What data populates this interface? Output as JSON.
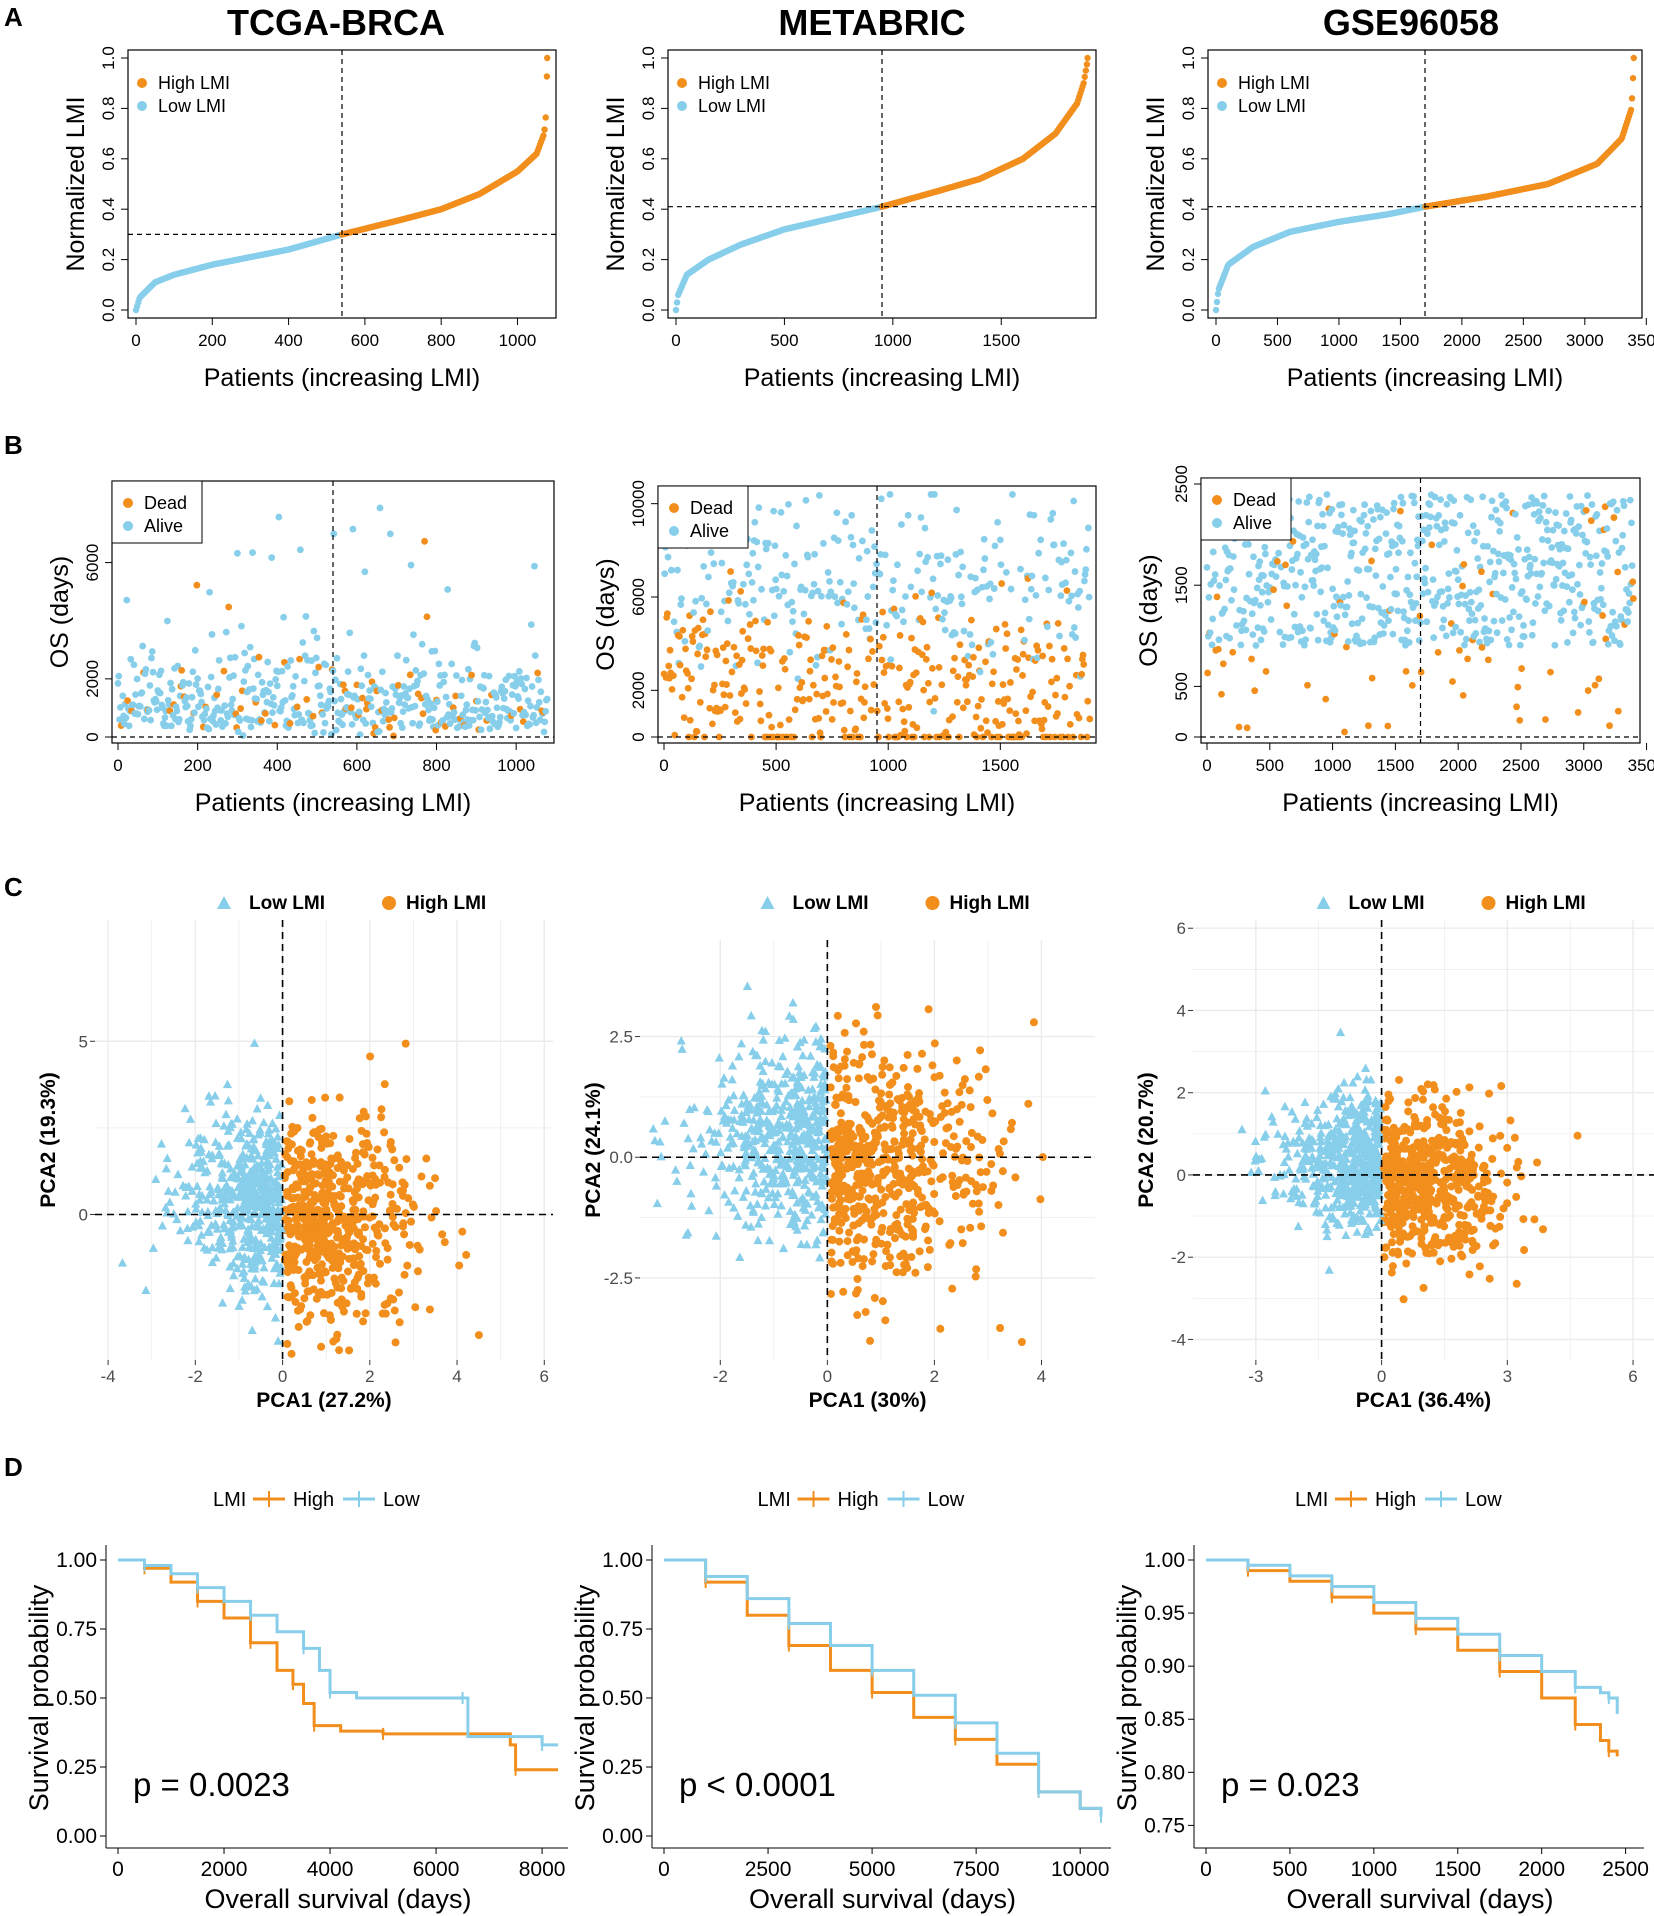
{
  "colors": {
    "high": "#F28E1C",
    "low": "#87CEEB",
    "black": "#000000",
    "grid": "#EBEBEB"
  },
  "panel_labels": [
    "A",
    "B",
    "C",
    "D"
  ],
  "column_titles": [
    "TCGA-BRCA",
    "METABRIC",
    "GSE96058"
  ],
  "chart_data": [
    {
      "id": "A1",
      "type": "scatter",
      "panel": "A",
      "title": "TCGA-BRCA",
      "xlabel": "Patients (increasing LMI)",
      "ylabel": "Normalized LMI",
      "xlim": [
        0,
        1080
      ],
      "ylim": [
        0,
        1.0
      ],
      "xticks": [
        0,
        200,
        400,
        600,
        800,
        1000
      ],
      "yticks": [
        0.0,
        0.2,
        0.4,
        0.6,
        0.8,
        1.0
      ],
      "ytick_labels": [
        "0.0",
        "0.2",
        "0.4",
        "0.6",
        "0.8",
        "1.0"
      ],
      "cutoff_x": 540,
      "cutoff_y": 0.3,
      "n": 1080,
      "curve": [
        [
          0,
          0.0
        ],
        [
          10,
          0.05
        ],
        [
          50,
          0.11
        ],
        [
          100,
          0.14
        ],
        [
          200,
          0.18
        ],
        [
          300,
          0.21
        ],
        [
          400,
          0.24
        ],
        [
          540,
          0.3
        ],
        [
          700,
          0.36
        ],
        [
          800,
          0.4
        ],
        [
          900,
          0.46
        ],
        [
          1000,
          0.55
        ],
        [
          1050,
          0.62
        ],
        [
          1070,
          0.7
        ],
        [
          1075,
          0.78
        ],
        [
          1078,
          1.0
        ]
      ],
      "legend": [
        "High LMI",
        "Low LMI"
      ]
    },
    {
      "id": "A2",
      "type": "scatter",
      "panel": "A",
      "title": "METABRIC",
      "xlabel": "Patients (increasing LMI)",
      "ylabel": "Normalized LMI",
      "xlim": [
        0,
        1900
      ],
      "ylim": [
        0,
        1.0
      ],
      "xticks": [
        0,
        500,
        1000,
        1500
      ],
      "yticks": [
        0.0,
        0.2,
        0.4,
        0.6,
        0.8,
        1.0
      ],
      "ytick_labels": [
        "0.0",
        "0.2",
        "0.4",
        "0.6",
        "0.8",
        "1.0"
      ],
      "cutoff_x": 950,
      "cutoff_y": 0.41,
      "n": 1900,
      "curve": [
        [
          0,
          0.0
        ],
        [
          10,
          0.06
        ],
        [
          50,
          0.14
        ],
        [
          150,
          0.2
        ],
        [
          300,
          0.26
        ],
        [
          500,
          0.32
        ],
        [
          700,
          0.36
        ],
        [
          950,
          0.41
        ],
        [
          1200,
          0.47
        ],
        [
          1400,
          0.52
        ],
        [
          1600,
          0.6
        ],
        [
          1750,
          0.7
        ],
        [
          1850,
          0.82
        ],
        [
          1880,
          0.9
        ],
        [
          1900,
          1.0
        ]
      ],
      "legend": [
        "High LMI",
        "Low LMI"
      ]
    },
    {
      "id": "A3",
      "type": "scatter",
      "panel": "A",
      "title": "GSE96058",
      "xlabel": "Patients (increasing LMI)",
      "ylabel": "Normalized LMI",
      "xlim": [
        0,
        3400
      ],
      "ylim": [
        0,
        1.0
      ],
      "xticks": [
        0,
        500,
        1000,
        1500,
        2000,
        2500,
        3000,
        3500
      ],
      "yticks": [
        0.0,
        0.2,
        0.4,
        0.6,
        0.8,
        1.0
      ],
      "ytick_labels": [
        "0.0",
        "0.2",
        "0.4",
        "0.6",
        "0.8",
        "1.0"
      ],
      "cutoff_x": 1700,
      "cutoff_y": 0.41,
      "n": 3400,
      "curve": [
        [
          0,
          0.0
        ],
        [
          20,
          0.08
        ],
        [
          100,
          0.18
        ],
        [
          300,
          0.25
        ],
        [
          600,
          0.31
        ],
        [
          1000,
          0.35
        ],
        [
          1400,
          0.38
        ],
        [
          1700,
          0.41
        ],
        [
          2200,
          0.45
        ],
        [
          2700,
          0.5
        ],
        [
          3100,
          0.58
        ],
        [
          3300,
          0.68
        ],
        [
          3380,
          0.8
        ],
        [
          3400,
          1.0
        ]
      ],
      "legend": [
        "High LMI",
        "Low LMI"
      ]
    },
    {
      "id": "B1",
      "type": "scatter",
      "panel": "B",
      "xlabel": "Patients (increasing LMI)",
      "ylabel": "OS (days)",
      "xlim": [
        0,
        1080
      ],
      "ylim": [
        0,
        8600
      ],
      "xticks": [
        0,
        200,
        400,
        600,
        800,
        1000
      ],
      "yticks": [
        0,
        2000,
        6000
      ],
      "cutoff_x": 540,
      "cutoff_y": 0,
      "n": 1080,
      "dead_frac": 0.14,
      "legend": [
        "Dead",
        "Alive"
      ]
    },
    {
      "id": "B2",
      "type": "scatter",
      "panel": "B",
      "xlabel": "Patients (increasing LMI)",
      "ylabel": "OS (days)",
      "xlim": [
        0,
        1900
      ],
      "ylim": [
        0,
        10500
      ],
      "xticks": [
        0,
        500,
        1000,
        1500
      ],
      "yticks": [
        0,
        2000,
        6000,
        10000
      ],
      "cutoff_x": 950,
      "cutoff_y": 0,
      "n": 1900,
      "dead_frac": 0.58,
      "legend": [
        "Dead",
        "Alive"
      ]
    },
    {
      "id": "B3",
      "type": "scatter",
      "panel": "B",
      "xlabel": "Patients (increasing LMI)",
      "ylabel": "OS (days)",
      "xlim": [
        0,
        3400
      ],
      "ylim": [
        0,
        2500
      ],
      "xticks": [
        0,
        500,
        1000,
        1500,
        2000,
        2500,
        3000,
        3500
      ],
      "yticks": [
        0,
        500,
        1500,
        2500
      ],
      "cutoff_x": 1700,
      "cutoff_y": 0,
      "n": 3400,
      "dead_frac": 0.1,
      "legend": [
        "Dead",
        "Alive"
      ]
    },
    {
      "id": "C1",
      "type": "scatter",
      "panel": "C",
      "xlabel": "PCA1 (27.2%)",
      "ylabel": "PCA2 (19.3%)",
      "xlim": [
        -4.3,
        6.2
      ],
      "ylim": [
        -4.2,
        8.5
      ],
      "xticks": [
        -4,
        -2,
        0,
        2,
        4,
        6
      ],
      "xtick_labels": [
        "-4",
        "-2",
        "0",
        "2",
        "4",
        "6"
      ],
      "yticks": [
        0,
        5
      ],
      "ytick_labels": [
        "0",
        "5"
      ],
      "legend": [
        "Low LMI",
        "High LMI"
      ],
      "n": 1080,
      "spread": [
        1.0,
        1.2
      ]
    },
    {
      "id": "C2",
      "type": "scatter",
      "panel": "C",
      "xlabel": "PCA1 (30%)",
      "ylabel": "PCA2 (24.1%)",
      "xlim": [
        -3.5,
        5.0
      ],
      "ylim": [
        -4.2,
        4.5
      ],
      "xticks": [
        -2,
        0,
        2,
        4
      ],
      "xtick_labels": [
        "-2",
        "0",
        "2",
        "4"
      ],
      "yticks": [
        -2.5,
        0,
        2.5
      ],
      "ytick_labels": [
        "-2.5",
        "0.0",
        "2.5"
      ],
      "legend": [
        "Low LMI",
        "High LMI"
      ],
      "n": 1900,
      "spread": [
        1.0,
        1.0
      ]
    },
    {
      "id": "C3",
      "type": "scatter",
      "panel": "C",
      "xlabel": "PCA1 (36.4%)",
      "ylabel": "PCA2 (20.7%)",
      "xlim": [
        -4.5,
        6.5
      ],
      "ylim": [
        -4.5,
        6.2
      ],
      "xticks": [
        -3,
        0,
        3,
        6
      ],
      "xtick_labels": [
        "-3",
        "0",
        "3",
        "6"
      ],
      "yticks": [
        -4,
        -2,
        0,
        2,
        4,
        6
      ],
      "ytick_labels": [
        "-4",
        "-2",
        "0",
        "2",
        "4",
        "6"
      ],
      "legend": [
        "Low LMI",
        "High LMI"
      ],
      "n": 3400,
      "spread": [
        1.0,
        0.8
      ]
    },
    {
      "id": "D1",
      "type": "line",
      "panel": "D",
      "xlabel": "Overall survival (days)",
      "ylabel": "Survival probability",
      "xlim": [
        0,
        8300
      ],
      "ylim": [
        0,
        1.0
      ],
      "xticks": [
        0,
        2000,
        4000,
        6000,
        8000
      ],
      "yticks": [
        0,
        0.25,
        0.5,
        0.75,
        1.0
      ],
      "ytick_labels": [
        "0.00",
        "0.25",
        "0.50",
        "0.75",
        "1.00"
      ],
      "pvalue": "p = 0.0023",
      "legend_title": "LMI",
      "legend": [
        "High",
        "Low"
      ],
      "series": [
        {
          "name": "High",
          "points": [
            [
              0,
              1.0
            ],
            [
              500,
              0.97
            ],
            [
              1000,
              0.92
            ],
            [
              1500,
              0.85
            ],
            [
              2000,
              0.79
            ],
            [
              2500,
              0.7
            ],
            [
              3000,
              0.6
            ],
            [
              3300,
              0.55
            ],
            [
              3500,
              0.48
            ],
            [
              3700,
              0.4
            ],
            [
              4200,
              0.38
            ],
            [
              5000,
              0.37
            ],
            [
              7400,
              0.33
            ],
            [
              7500,
              0.24
            ],
            [
              8300,
              0.24
            ]
          ]
        },
        {
          "name": "Low",
          "points": [
            [
              0,
              1.0
            ],
            [
              500,
              0.98
            ],
            [
              1000,
              0.95
            ],
            [
              1500,
              0.9
            ],
            [
              2000,
              0.85
            ],
            [
              2500,
              0.8
            ],
            [
              3000,
              0.74
            ],
            [
              3500,
              0.68
            ],
            [
              3800,
              0.6
            ],
            [
              4000,
              0.52
            ],
            [
              4500,
              0.5
            ],
            [
              6500,
              0.5
            ],
            [
              6600,
              0.36
            ],
            [
              8000,
              0.33
            ],
            [
              8300,
              0.33
            ]
          ]
        }
      ]
    },
    {
      "id": "D2",
      "type": "line",
      "panel": "D",
      "xlabel": "Overall survival (days)",
      "ylabel": "Survival probability",
      "xlim": [
        0,
        10500
      ],
      "ylim": [
        0,
        1.0
      ],
      "xticks": [
        0,
        2500,
        5000,
        7500,
        10000
      ],
      "yticks": [
        0,
        0.25,
        0.5,
        0.75,
        1.0
      ],
      "ytick_labels": [
        "0.00",
        "0.25",
        "0.50",
        "0.75",
        "1.00"
      ],
      "pvalue": "p < 0.0001",
      "legend_title": "LMI",
      "legend": [
        "High",
        "Low"
      ],
      "series": [
        {
          "name": "High",
          "points": [
            [
              0,
              1.0
            ],
            [
              1000,
              0.92
            ],
            [
              2000,
              0.8
            ],
            [
              3000,
              0.69
            ],
            [
              4000,
              0.6
            ],
            [
              5000,
              0.52
            ],
            [
              6000,
              0.43
            ],
            [
              7000,
              0.35
            ],
            [
              8000,
              0.26
            ],
            [
              9000,
              0.16
            ],
            [
              10000,
              0.1
            ],
            [
              10500,
              0.07
            ]
          ]
        },
        {
          "name": "Low",
          "points": [
            [
              0,
              1.0
            ],
            [
              1000,
              0.94
            ],
            [
              2000,
              0.86
            ],
            [
              3000,
              0.77
            ],
            [
              4000,
              0.69
            ],
            [
              5000,
              0.6
            ],
            [
              6000,
              0.51
            ],
            [
              7000,
              0.41
            ],
            [
              8000,
              0.3
            ],
            [
              9000,
              0.16
            ],
            [
              10000,
              0.1
            ],
            [
              10500,
              0.07
            ]
          ]
        }
      ]
    },
    {
      "id": "D3",
      "type": "line",
      "panel": "D",
      "xlabel": "Overall survival (days)",
      "ylabel": "Survival probability",
      "xlim": [
        0,
        2550
      ],
      "ylim": [
        0.74,
        1.0
      ],
      "xticks": [
        0,
        500,
        1000,
        1500,
        2000,
        2500
      ],
      "yticks": [
        0.75,
        0.8,
        0.85,
        0.9,
        0.95,
        1.0
      ],
      "ytick_labels": [
        "0.75",
        "0.80",
        "0.85",
        "0.90",
        "0.95",
        "1.00"
      ],
      "pvalue": "p = 0.023",
      "legend_title": "LMI",
      "legend": [
        "High",
        "Low"
      ],
      "series": [
        {
          "name": "High",
          "points": [
            [
              0,
              1.0
            ],
            [
              250,
              0.99
            ],
            [
              500,
              0.98
            ],
            [
              750,
              0.965
            ],
            [
              1000,
              0.95
            ],
            [
              1250,
              0.935
            ],
            [
              1500,
              0.915
            ],
            [
              1750,
              0.895
            ],
            [
              2000,
              0.87
            ],
            [
              2200,
              0.845
            ],
            [
              2350,
              0.83
            ],
            [
              2400,
              0.82
            ],
            [
              2450,
              0.815
            ]
          ]
        },
        {
          "name": "Low",
          "points": [
            [
              0,
              1.0
            ],
            [
              250,
              0.995
            ],
            [
              500,
              0.985
            ],
            [
              750,
              0.975
            ],
            [
              1000,
              0.96
            ],
            [
              1250,
              0.945
            ],
            [
              1500,
              0.93
            ],
            [
              1750,
              0.91
            ],
            [
              2000,
              0.895
            ],
            [
              2200,
              0.88
            ],
            [
              2350,
              0.875
            ],
            [
              2400,
              0.87
            ],
            [
              2450,
              0.855
            ]
          ]
        }
      ]
    }
  ]
}
